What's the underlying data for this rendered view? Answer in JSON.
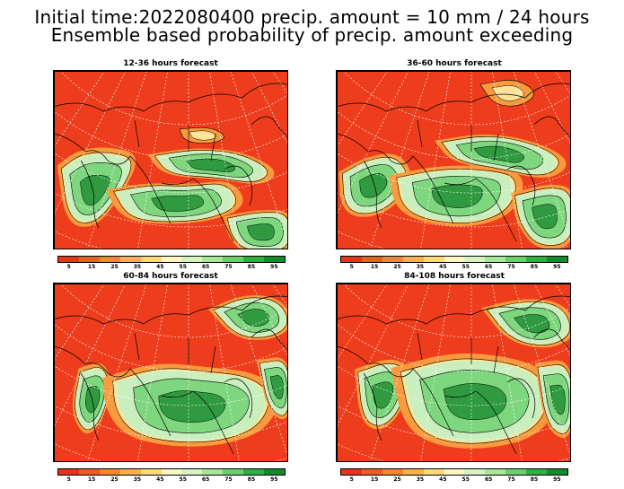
{
  "header": {
    "line1": "Initial time:2022080400 precip. amount = 10 mm / 24 hours",
    "line2": "Ensemble based probability of precip. amount exceeding"
  },
  "panels": [
    {
      "title": "12-36 hours forecast"
    },
    {
      "title": "36-60 hours forecast"
    },
    {
      "title": "60-84 hours forecast"
    },
    {
      "title": "84-108 hours forecast"
    }
  ],
  "colorbar": {
    "labels": [
      "5",
      "15",
      "25",
      "35",
      "45",
      "55",
      "65",
      "75",
      "85",
      "95"
    ],
    "colors": [
      "#e8331a",
      "#f05a23",
      "#f7852e",
      "#fbb04a",
      "#fdd978",
      "#fdf5c2",
      "#d7f3c2",
      "#a8e69a",
      "#6bcf6b",
      "#2fae41",
      "#138a2c"
    ]
  },
  "colors": {
    "low_prob": "#ee3d1c",
    "mid_prob": "#f99a3c",
    "light_prob": "#fde49a",
    "pale_green": "#c9efbf",
    "green": "#7ed77e",
    "dark_green": "#2f9a3f",
    "coast": "#000000",
    "grid": "#ffffff"
  }
}
